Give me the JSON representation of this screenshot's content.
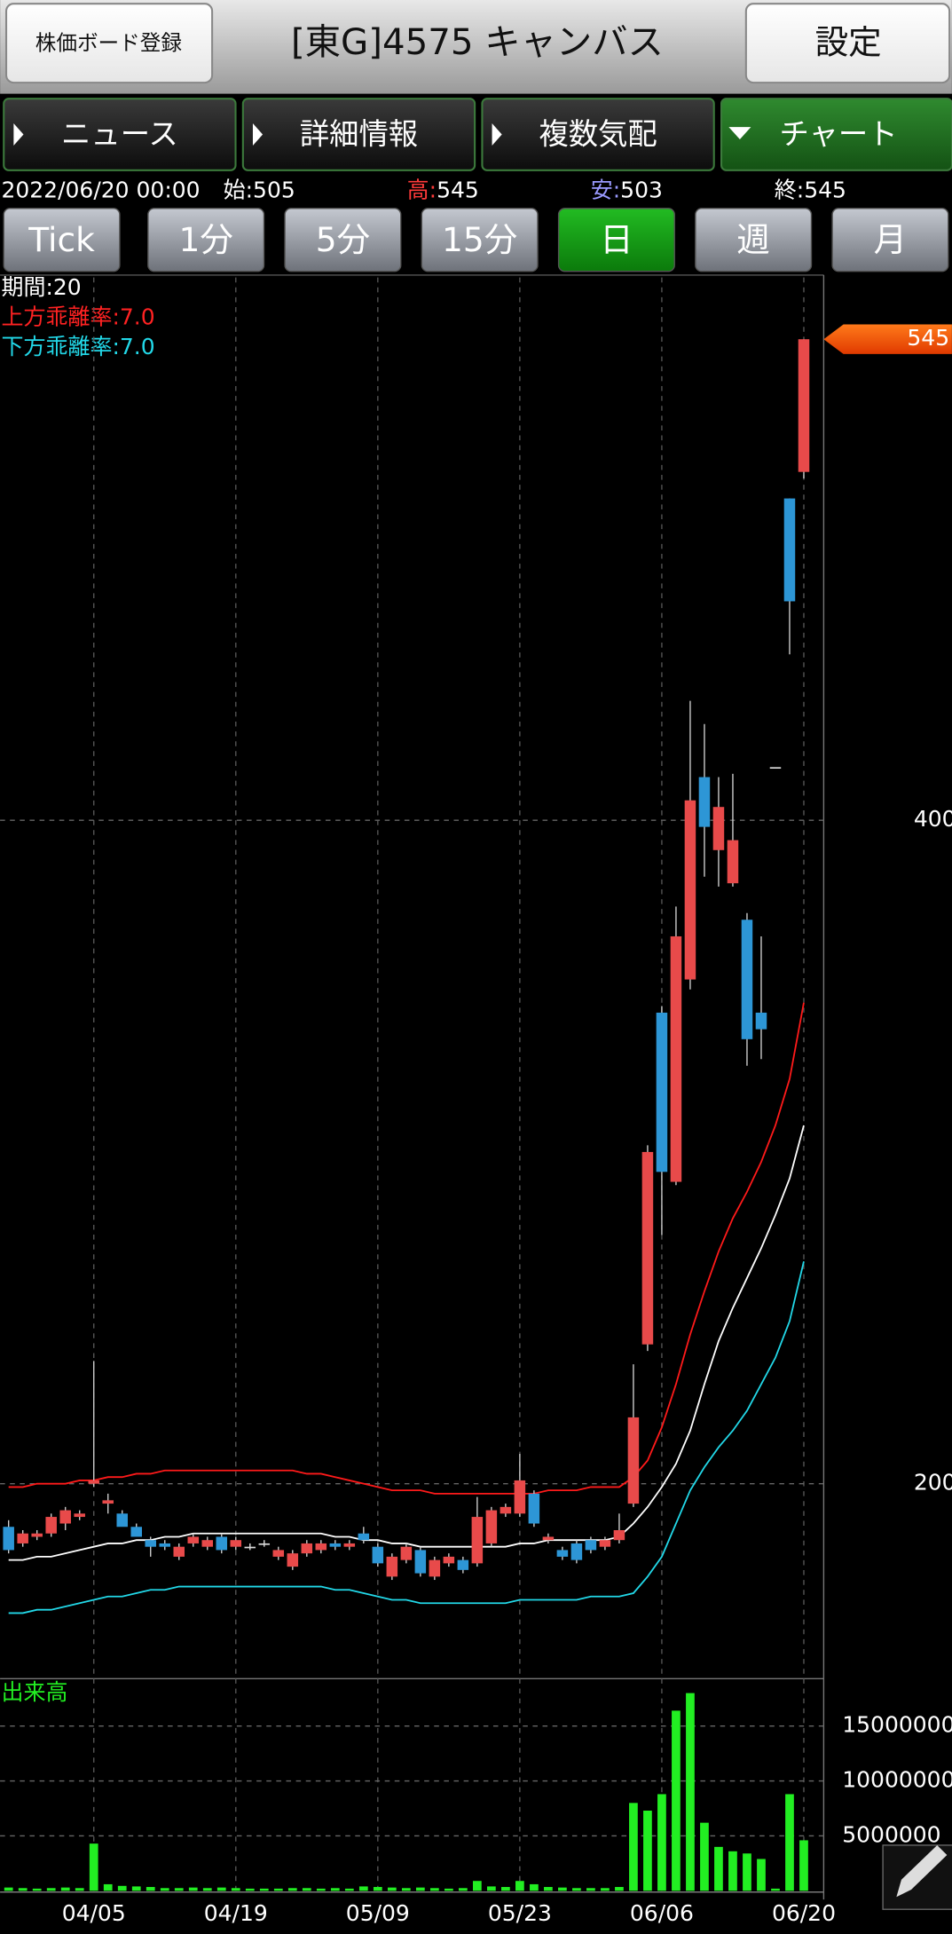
{
  "header": {
    "register_button": "株価ボード登録",
    "title": "[東G]4575 キャンバス",
    "settings_button": "設定"
  },
  "tabs": [
    "ニュース",
    "詳細情報",
    "複数気配",
    "チャート"
  ],
  "quote": {
    "datetime": "2022/06/20 00:00",
    "items": [
      {
        "label": "始:",
        "value": 505
      },
      {
        "label": "高:",
        "value": 545
      },
      {
        "label": "安:",
        "value": 503
      },
      {
        "label": "終:",
        "value": 545
      }
    ]
  },
  "periods": [
    "Tick",
    "1分",
    "5分",
    "15分",
    "日",
    "週",
    "月"
  ],
  "chart_data": {
    "type": "candlestick",
    "indicator_labels": [
      "期間:20",
      "上方乖離率:7.0",
      "下方乖離率:7.0"
    ],
    "categories": [
      null,
      null,
      null,
      null,
      null,
      null,
      "04/05",
      null,
      null,
      null,
      null,
      null,
      null,
      null,
      null,
      null,
      "04/19",
      null,
      null,
      null,
      null,
      null,
      null,
      null,
      null,
      null,
      "05/09",
      null,
      null,
      null,
      null,
      null,
      null,
      null,
      null,
      null,
      "05/23",
      null,
      null,
      null,
      null,
      null,
      null,
      null,
      null,
      null,
      "06/06",
      null,
      null,
      null,
      null,
      null,
      null,
      null,
      null,
      null,
      "06/20"
    ],
    "open": [
      187,
      182,
      184,
      185,
      188,
      190,
      200,
      194,
      191,
      187,
      183,
      182,
      178,
      182,
      181,
      184,
      181,
      181,
      182,
      178,
      175,
      179,
      180,
      182,
      181,
      185,
      181,
      172,
      177,
      180,
      172,
      176,
      177,
      176,
      182,
      191,
      191,
      197,
      183,
      180,
      182,
      183,
      181,
      183,
      194,
      242,
      342,
      291,
      352,
      413,
      391,
      381,
      370,
      342,
      416,
      497,
      505
    ],
    "high": [
      189,
      186,
      186,
      191,
      193,
      192,
      237,
      197,
      192,
      188,
      184,
      183,
      182,
      185,
      184,
      185,
      184,
      182,
      183,
      181,
      180,
      183,
      183,
      183,
      183,
      187,
      182,
      179,
      182,
      181,
      178,
      179,
      178,
      196,
      193,
      194,
      209,
      198,
      185,
      181,
      183,
      184,
      184,
      191,
      236,
      302,
      344,
      374,
      436,
      429,
      413,
      414,
      372,
      365,
      416,
      497,
      545
    ],
    "low": [
      179,
      181,
      183,
      184,
      186,
      189,
      199,
      191,
      189,
      185,
      178,
      180,
      177,
      181,
      180,
      179,
      180,
      180,
      181,
      177,
      174,
      178,
      179,
      180,
      180,
      182,
      175,
      171,
      176,
      172,
      171,
      175,
      173,
      175,
      181,
      190,
      190,
      187,
      182,
      177,
      176,
      179,
      180,
      182,
      193,
      240,
      275,
      290,
      349,
      383,
      380,
      380,
      326,
      328,
      416,
      450,
      503
    ],
    "close": [
      180,
      185,
      185,
      190,
      192,
      191,
      201,
      195,
      187,
      184,
      181,
      181,
      181,
      184,
      183,
      180,
      183,
      181,
      182,
      180,
      179,
      182,
      182,
      181,
      182,
      183,
      176,
      178,
      181,
      173,
      177,
      178,
      174,
      190,
      192,
      193,
      201,
      188,
      184,
      178,
      177,
      180,
      183,
      186,
      220,
      300,
      294,
      365,
      406,
      398,
      404,
      394,
      334,
      337,
      416,
      466,
      545
    ],
    "up_color": "#e84a4a",
    "down_color": "#2d96d6",
    "ylim": [
      141.6,
      563.6
    ],
    "yticks": [
      200,
      400
    ],
    "grid": true,
    "lines": [
      {
        "color": "#ff1a1a",
        "values": [
          199,
          199,
          200,
          200,
          200,
          201,
          201,
          202,
          202,
          203,
          203,
          204,
          204,
          204,
          204,
          204,
          204,
          204,
          204,
          204,
          204,
          203,
          203,
          202,
          201,
          200,
          199,
          198,
          198,
          198,
          197,
          197,
          197,
          197,
          197,
          197,
          197,
          197,
          198,
          198,
          198,
          199,
          199,
          199,
          202,
          207,
          217,
          230,
          245,
          258,
          270,
          280,
          288,
          297,
          308,
          322,
          345
        ]
      },
      {
        "color": "#ffffff",
        "values": [
          177,
          177,
          178,
          178,
          179,
          180,
          181,
          182,
          182,
          183,
          183,
          184,
          184,
          185,
          185,
          185,
          185,
          185,
          185,
          185,
          185,
          185,
          185,
          184,
          184,
          183,
          183,
          182,
          182,
          181,
          181,
          181,
          181,
          181,
          181,
          181,
          182,
          182,
          183,
          183,
          183,
          183,
          183,
          184,
          188,
          193,
          199,
          206,
          216,
          230,
          243,
          253,
          262,
          271,
          281,
          292,
          308
        ]
      },
      {
        "color": "#22d8e8",
        "values": [
          161,
          161,
          162,
          162,
          163,
          164,
          165,
          166,
          166,
          167,
          168,
          168,
          169,
          169,
          169,
          169,
          169,
          169,
          169,
          169,
          169,
          169,
          169,
          168,
          168,
          167,
          166,
          165,
          165,
          164,
          164,
          164,
          164,
          164,
          164,
          164,
          165,
          165,
          165,
          165,
          165,
          166,
          166,
          166,
          167,
          172,
          178,
          188,
          198,
          205,
          211,
          216,
          222,
          230,
          238,
          249,
          267
        ]
      }
    ],
    "volume": {
      "label": "出来高",
      "color": "#22ee22",
      "values": [
        300000,
        250000,
        200000,
        250000,
        300000,
        250000,
        4300000,
        600000,
        450000,
        400000,
        350000,
        250000,
        250000,
        300000,
        250000,
        300000,
        250000,
        200000,
        200000,
        200000,
        250000,
        250000,
        200000,
        250000,
        200000,
        400000,
        350000,
        300000,
        250000,
        300000,
        250000,
        200000,
        250000,
        900000,
        400000,
        350000,
        900000,
        600000,
        350000,
        300000,
        250000,
        250000,
        250000,
        350000,
        8000000,
        7300000,
        8800000,
        16400000,
        18000000,
        6200000,
        4000000,
        3600000,
        3400000,
        2900000,
        200000,
        8800000,
        4600000
      ],
      "ylim": [
        0,
        19200000
      ],
      "yticks": [
        5000000,
        10000000,
        15000000
      ]
    }
  }
}
